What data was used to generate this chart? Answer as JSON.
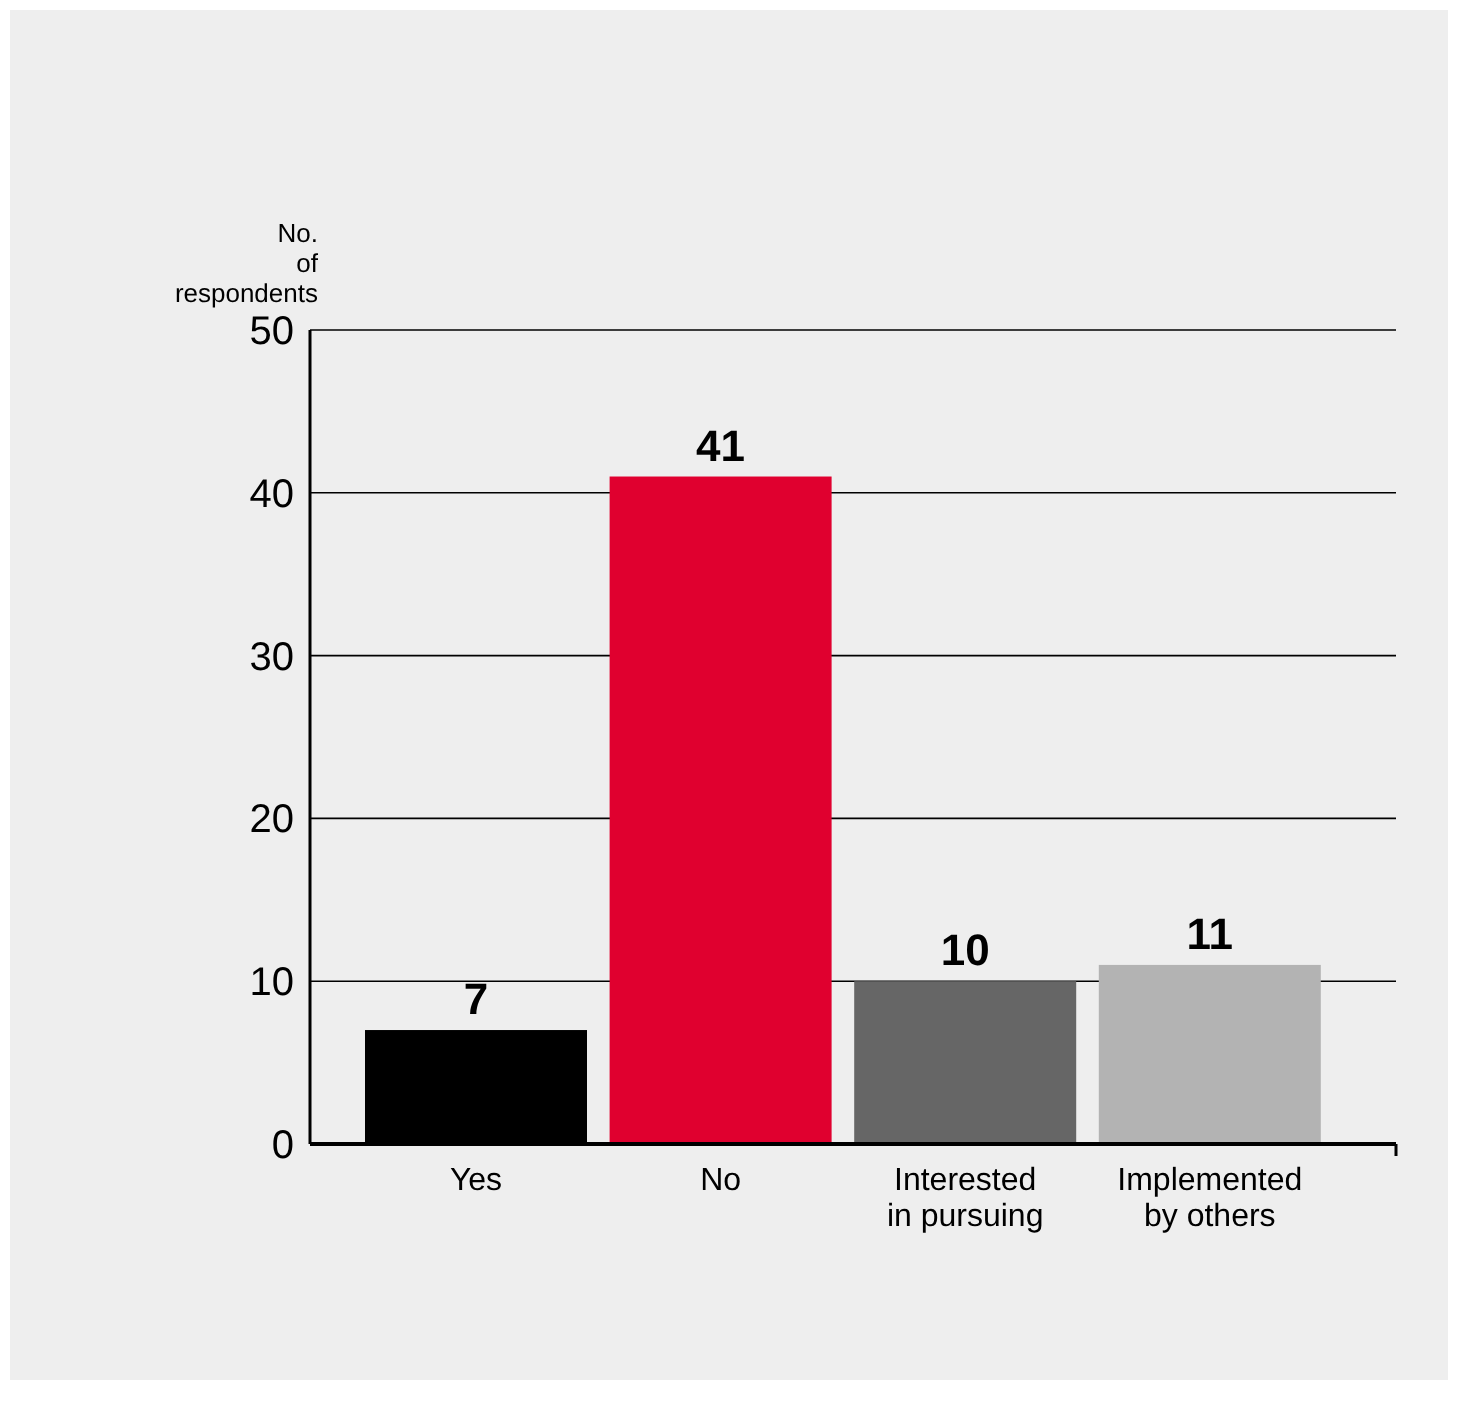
{
  "chart_data": {
    "type": "bar",
    "ylabel": "No.\nof\nrespondents",
    "categories": [
      "Yes",
      "No",
      "Interested\nin pursuing",
      "Implemented\nby others"
    ],
    "values": [
      7,
      41,
      10,
      11
    ],
    "colors": [
      "#000000",
      "#e0002f",
      "#666666",
      "#b3b3b3"
    ],
    "ylim": [
      0,
      50
    ],
    "yticks": [
      0,
      10,
      20,
      30,
      40,
      50
    ],
    "grid": "y",
    "data_labels": true
  }
}
